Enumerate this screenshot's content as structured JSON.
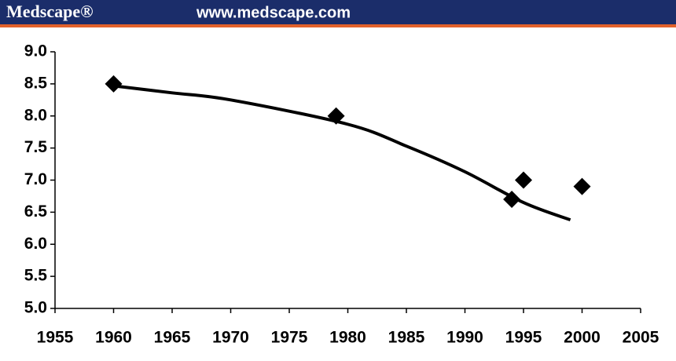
{
  "header": {
    "logo": "Medscape®",
    "url": "www.medscape.com"
  },
  "chart_data": {
    "type": "scatter",
    "x": [
      1960,
      1979,
      1994,
      1995,
      2000
    ],
    "values": [
      8.5,
      8.0,
      6.7,
      7.0,
      6.9
    ],
    "color": "#000000",
    "trendline": {
      "x": [
        1960,
        1965,
        1970,
        1980,
        1985,
        1990,
        1995,
        1999
      ],
      "values": [
        8.47,
        8.36,
        8.25,
        7.87,
        7.53,
        7.13,
        6.65,
        6.38
      ]
    },
    "xlim": [
      1955,
      2005
    ],
    "xticks": [
      1955,
      1960,
      1965,
      1970,
      1975,
      1980,
      1985,
      1990,
      1995,
      2000,
      2005
    ],
    "ylim": [
      5,
      9
    ],
    "yticks": [
      {
        "value": 5,
        "label": "5.0"
      },
      {
        "value": 5.5,
        "label": "5.5"
      },
      {
        "value": 6,
        "label": "6.0"
      },
      {
        "value": 6.5,
        "label": "6.5"
      },
      {
        "value": 7,
        "label": "7.0"
      },
      {
        "value": 7.5,
        "label": "7.5"
      },
      {
        "value": 8,
        "label": "8.0"
      },
      {
        "value": 8.5,
        "label": "8.5"
      },
      {
        "value": 9,
        "label": "9.0"
      }
    ],
    "grid": false
  }
}
